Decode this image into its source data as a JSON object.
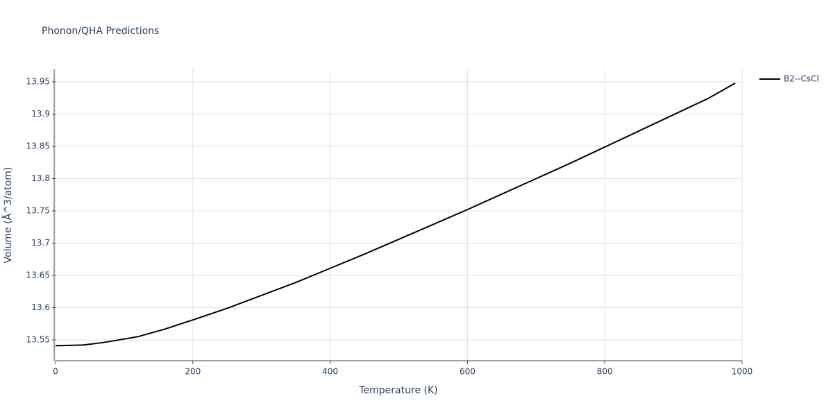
{
  "chart_data": {
    "type": "line",
    "title": "Phonon/QHA Predictions",
    "x_label": "Temperature (K)",
    "y_label": "Volume (Å^3/atom)",
    "x": [
      0,
      40,
      70,
      120,
      160,
      200,
      250,
      300,
      350,
      400,
      450,
      500,
      550,
      600,
      650,
      700,
      750,
      800,
      850,
      900,
      950,
      990
    ],
    "series": [
      {
        "name": "B2--CsCl",
        "color": "#000000",
        "values": [
          13.541,
          13.542,
          13.546,
          13.555,
          13.567,
          13.581,
          13.599,
          13.619,
          13.639,
          13.661,
          13.683,
          13.706,
          13.729,
          13.752,
          13.776,
          13.8,
          13.824,
          13.849,
          13.874,
          13.899,
          13.924,
          13.948
        ]
      }
    ],
    "xlim": [
      0,
      1000
    ],
    "xticks": [
      0,
      200,
      400,
      600,
      800,
      1000
    ],
    "ylim": [
      13.5177,
      13.9694
    ],
    "yticks": [
      13.55,
      13.6,
      13.65,
      13.7,
      13.75,
      13.8,
      13.85,
      13.9,
      13.95
    ],
    "grid": true,
    "legend": "top-right"
  }
}
